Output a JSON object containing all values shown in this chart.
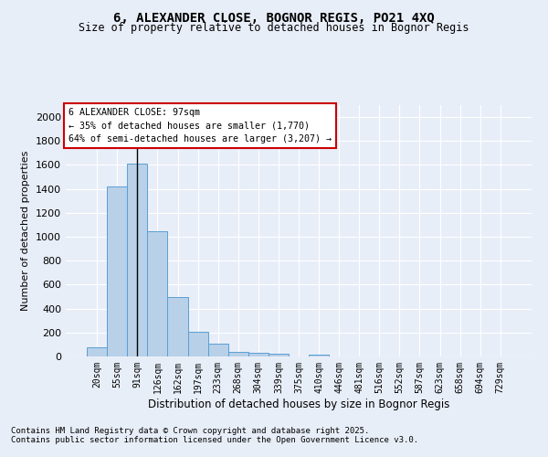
{
  "title": "6, ALEXANDER CLOSE, BOGNOR REGIS, PO21 4XQ",
  "subtitle": "Size of property relative to detached houses in Bognor Regis",
  "xlabel": "Distribution of detached houses by size in Bognor Regis",
  "ylabel": "Number of detached properties",
  "categories": [
    "20sqm",
    "55sqm",
    "91sqm",
    "126sqm",
    "162sqm",
    "197sqm",
    "233sqm",
    "268sqm",
    "304sqm",
    "339sqm",
    "375sqm",
    "410sqm",
    "446sqm",
    "481sqm",
    "516sqm",
    "552sqm",
    "587sqm",
    "623sqm",
    "658sqm",
    "694sqm",
    "729sqm"
  ],
  "values": [
    80,
    1420,
    1610,
    1050,
    500,
    205,
    105,
    38,
    28,
    20,
    0,
    18,
    0,
    0,
    0,
    0,
    0,
    0,
    0,
    0,
    0
  ],
  "bar_color": "#b8d0e8",
  "bar_edge_color": "#5a9fd4",
  "bg_color": "#e8eef8",
  "grid_color": "#ffffff",
  "vline_x": 2,
  "annotation_text": "6 ALEXANDER CLOSE: 97sqm\n← 35% of detached houses are smaller (1,770)\n64% of semi-detached houses are larger (3,207) →",
  "annotation_box_color": "#ffffff",
  "annotation_box_edge": "#cc0000",
  "ylim": [
    0,
    2100
  ],
  "yticks": [
    0,
    200,
    400,
    600,
    800,
    1000,
    1200,
    1400,
    1600,
    1800,
    2000
  ],
  "footer1": "Contains HM Land Registry data © Crown copyright and database right 2025.",
  "footer2": "Contains public sector information licensed under the Open Government Licence v3.0."
}
